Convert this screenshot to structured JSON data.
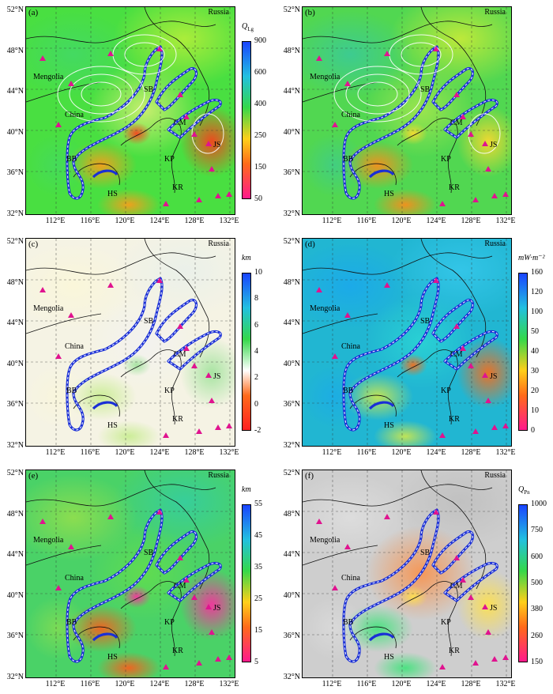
{
  "lat_labels": [
    "52°N",
    "48°N",
    "44°N",
    "40°N",
    "36°N",
    "32°N"
  ],
  "lon_labels": [
    "112°E",
    "116°E",
    "120°E",
    "124°E",
    "128°E",
    "132°E"
  ],
  "region_labels": {
    "russia": "Russia",
    "mongolia": "Mengolia",
    "china": "China",
    "sb": "SB",
    "bb": "BB",
    "hs": "HS",
    "kp": "KP",
    "kr": "KR",
    "cm": "CM",
    "js": "JS"
  },
  "panels": [
    {
      "label": "(a)",
      "cb_title": "Q",
      "cb_sub": "Lg",
      "ticks": [
        "900",
        "600",
        "400",
        "250",
        "150",
        "50"
      ],
      "colors": {
        "low": "#ff1a8c",
        "mid": "#ffcf1a",
        "high": "#1a44ff"
      }
    },
    {
      "label": "(b)",
      "cb_title": "",
      "cb_sub": "",
      "ticks": [],
      "colors": {
        "low": "#ff1a8c",
        "mid": "#ffcf1a",
        "high": "#1a44ff"
      }
    },
    {
      "label": "(c)",
      "cb_title": "km",
      "cb_sub": "",
      "ticks": [
        "10",
        "8",
        "6",
        "4",
        "2",
        "0",
        "-2"
      ],
      "colors": {
        "low": "#ff2020",
        "mid": "#ffffff",
        "high": "#1a44ff"
      }
    },
    {
      "label": "(d)",
      "cb_title": "mW·m⁻²",
      "cb_sub": "",
      "ticks": [
        "160",
        "120",
        "100",
        "50",
        "40",
        "30",
        "20",
        "10",
        "0"
      ],
      "colors": {
        "low": "#ff1a8c",
        "mid": "#ffcf1a",
        "high": "#1a44ff"
      }
    },
    {
      "label": "(e)",
      "cb_title": "km",
      "cb_sub": "",
      "ticks": [
        "55",
        "45",
        "35",
        "25",
        "15",
        "5"
      ],
      "colors": {
        "low": "#ff1a8c",
        "mid": "#ffcf1a",
        "high": "#1a44ff"
      }
    },
    {
      "label": "(f)",
      "cb_title": "Q",
      "cb_sub": "Pn",
      "ticks": [
        "1000",
        "750",
        "600",
        "500",
        "380",
        "260",
        "150"
      ],
      "colors": {
        "low": "#ff1a8c",
        "mid": "#ffcf1a",
        "high": "#1a44ff"
      }
    }
  ]
}
